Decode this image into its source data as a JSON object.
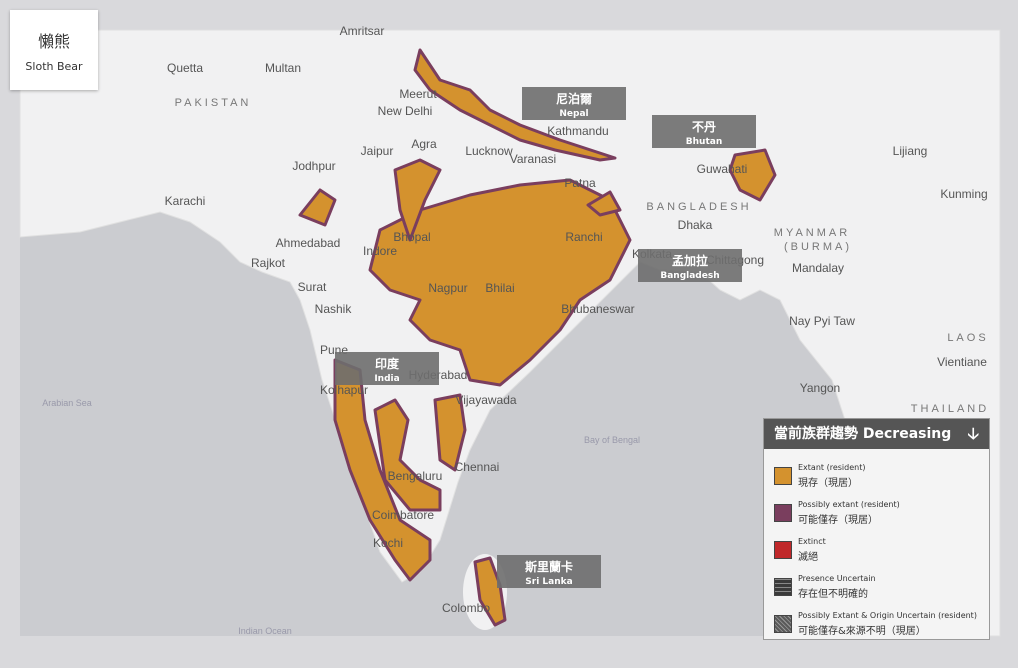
{
  "title": {
    "zh": "懶熊",
    "en": "Sloth Bear"
  },
  "countries": [
    {
      "zh": "尼泊爾",
      "en": "Nepal"
    },
    {
      "zh": "不丹",
      "en": "Bhutan"
    },
    {
      "zh": "孟加拉",
      "en": "Bangladesh"
    },
    {
      "zh": "印度",
      "en": "India"
    },
    {
      "zh": "斯里蘭卡",
      "en": "Sri Lanka"
    }
  ],
  "legend": {
    "title": "當前族群趨勢",
    "trend": "Decreasing",
    "arrow": "🡣",
    "items": [
      {
        "en": "Extant (resident)",
        "zh": "現存（現居）",
        "color": "#d4922e"
      },
      {
        "en": "Possibly extant (resident)",
        "zh": "可能僅存（現居）",
        "color": "#7a3e5e"
      },
      {
        "en": "Extinct",
        "zh": "滅絕",
        "color": "#c0282a"
      },
      {
        "en": "Presence Uncertain",
        "zh": "存在但不明確的",
        "color": "#3a3a3a"
      },
      {
        "en": "Possibly Extant & Origin Uncertain (resident)",
        "zh": "可能僅存&來源不明（現居）",
        "color": "#5a5a5a"
      }
    ]
  },
  "map_labels": [
    "Amritsar",
    "Quetta",
    "Multan",
    "PAKISTAN",
    "Meerut",
    "New Delhi",
    "Agra",
    "Jaipur",
    "Lucknow",
    "Kathmandu",
    "Jodhpur",
    "Varanasi",
    "Patna",
    "Guwahati",
    "Lijiang",
    "Karachi",
    "BANGLADESH",
    "Kunming",
    "Dhaka",
    "MYANMAR",
    "(BURMA)",
    "Ahmedabad",
    "Indore",
    "Bhopal",
    "Ranchi",
    "Kolkata",
    "Chittagong",
    "Mandalay",
    "Rajkot",
    "Surat",
    "Nagpur",
    "Bhilai",
    "Nashik",
    "Bhubaneswar",
    "Nay Pyi Taw",
    "Pune",
    "Hyderabad",
    "LAOS",
    "Vientiane",
    "Kolhapur",
    "Vijayawada",
    "Yangon",
    "THAILAND",
    "Arabian Sea",
    "Bay of Bengal",
    "Chennai",
    "Bengaluru",
    "Coimbatore",
    "Kochi",
    "Colombo",
    "Indian Ocean"
  ]
}
